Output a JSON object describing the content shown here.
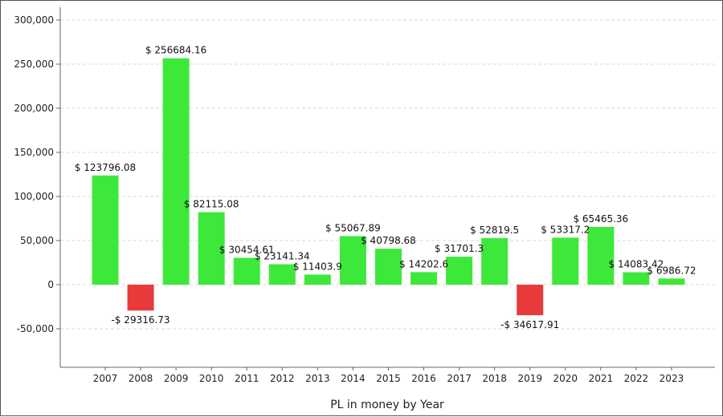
{
  "chart_data": {
    "type": "bar",
    "title": "",
    "xlabel": "PL in money by Year",
    "ylabel": "",
    "ylim": [
      -95000,
      300000
    ],
    "y_ticks": [
      -50000,
      0,
      50000,
      100000,
      150000,
      200000,
      250000,
      300000
    ],
    "y_tick_labels": [
      "-50,000",
      "0",
      "50,000",
      "100,000",
      "150,000",
      "200,000",
      "250,000",
      "300,000"
    ],
    "grid": "horizontal dashed",
    "colors": {
      "positive": "#3ee83a",
      "negative": "#e83a3a"
    },
    "categories": [
      "2007",
      "2008",
      "2009",
      "2010",
      "2011",
      "2012",
      "2013",
      "2014",
      "2015",
      "2016",
      "2017",
      "2018",
      "2019",
      "2020",
      "2021",
      "2022",
      "2023"
    ],
    "values": [
      123796.08,
      -29316.73,
      256684.16,
      82115.08,
      30454.61,
      23141.34,
      11403.9,
      55067.89,
      40798.68,
      14202.6,
      31701.3,
      52819.5,
      -34617.91,
      53317.2,
      65465.36,
      14083.42,
      6986.72
    ],
    "data_labels": [
      "$ 123796.08",
      "-$ 29316.73",
      "$ 256684.16",
      "$ 82115.08",
      "$ 30454.61",
      "$ 23141.34",
      "$ 11403.9",
      "$ 55067.89",
      "$ 40798.68",
      "$ 14202.6",
      "$ 31701.3",
      "$ 52819.5",
      "-$ 34617.91",
      "$ 53317.2",
      "$ 65465.36",
      "$ 14083.42",
      "$ 6986.72"
    ]
  }
}
